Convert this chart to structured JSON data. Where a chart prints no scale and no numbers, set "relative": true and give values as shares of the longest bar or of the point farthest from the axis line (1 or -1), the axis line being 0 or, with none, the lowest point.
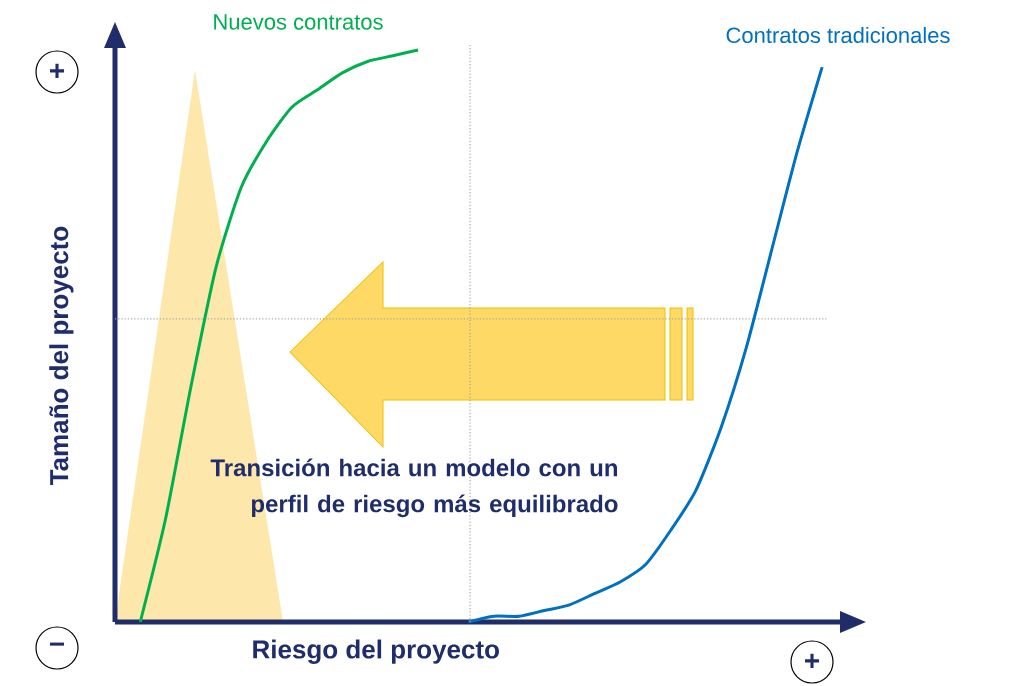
{
  "chart_data": {
    "type": "line",
    "relative": true,
    "xlabel": "Riesgo del proyecto",
    "ylabel": "Tamaño del proyecto",
    "categories": [
      null,
      null,
      null,
      null,
      null,
      null,
      null,
      null,
      null,
      null,
      null,
      null,
      null,
      null,
      null,
      null,
      null,
      null,
      null,
      null,
      null,
      null,
      null,
      null,
      null,
      null,
      null,
      null,
      null,
      null
    ],
    "series": [
      {
        "name": "Nuevos contratos",
        "color": "#00b050",
        "values": [
          null,
          0,
          0.18,
          0.41,
          0.62,
          0.76,
          0.84,
          0.9,
          0.93,
          0.96,
          0.98,
          0.99,
          1,
          null,
          null,
          null,
          null,
          null,
          null,
          null,
          null,
          null,
          null,
          null,
          null,
          null,
          null,
          null,
          null,
          null
        ]
      },
      {
        "name": "Contratos tradicionales",
        "color": "#0070c0",
        "values": [
          null,
          null,
          null,
          null,
          null,
          null,
          null,
          null,
          null,
          null,
          null,
          null,
          null,
          null,
          0,
          0.01,
          0.01,
          0.02,
          0.03,
          0.05,
          0.07,
          0.1,
          0.16,
          0.23,
          0.34,
          0.48,
          0.65,
          0.82,
          0.97,
          null
        ]
      }
    ],
    "ref_lines": [
      {
        "axis": "y",
        "value": 0.53,
        "color": "#a6a6a6",
        "line_style": "dotted"
      }
    ],
    "annotations": [
      "Transición hacia un modelo con un perfil de riesgo más equilibrado",
      "+",
      "−",
      "+"
    ],
    "marker": "none",
    "line_style": "solid"
  }
}
